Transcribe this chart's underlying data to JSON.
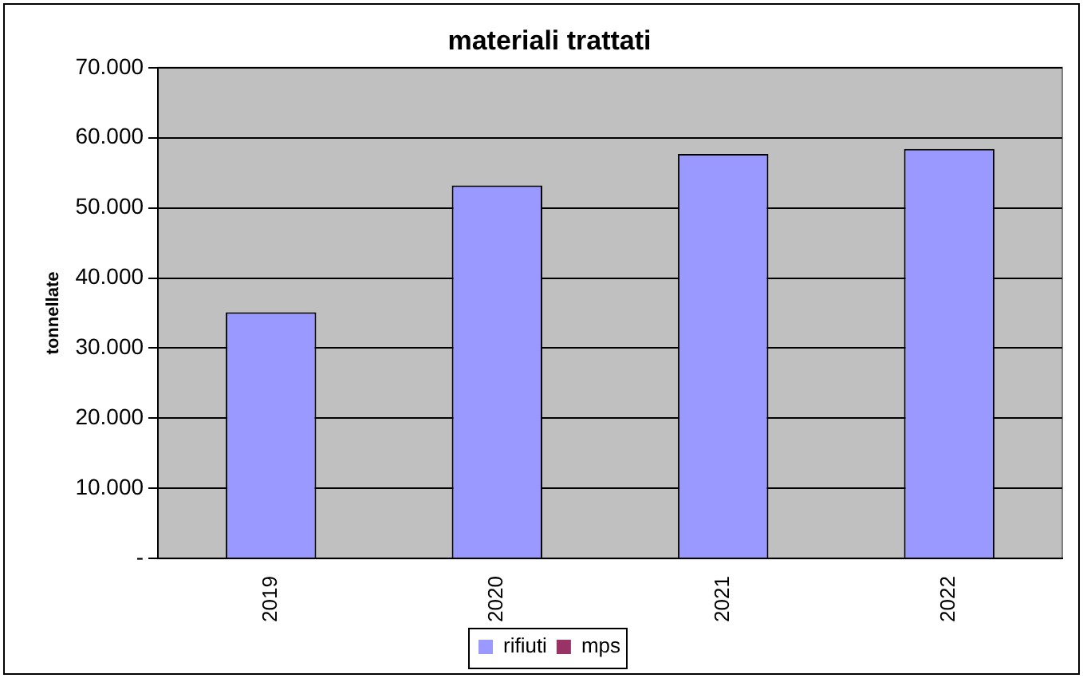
{
  "chart_data": {
    "type": "bar",
    "title": "materiali trattati",
    "ylabel": "tonnellate",
    "categories": [
      "2019",
      "2020",
      "2021",
      "2022"
    ],
    "stacked": true,
    "series": [
      {
        "name": "rifiuti",
        "color": "#9999ff",
        "values": [
          35100,
          53200,
          57700,
          58400
        ]
      },
      {
        "name": "mps",
        "color": "#993366",
        "values": [
          0,
          0,
          0,
          0
        ]
      }
    ],
    "ylim": [
      0,
      70000
    ],
    "yticks": [
      {
        "value": 0,
        "label": "-"
      },
      {
        "value": 10000,
        "label": "10.000"
      },
      {
        "value": 20000,
        "label": "20.000"
      },
      {
        "value": 30000,
        "label": "30.000"
      },
      {
        "value": 40000,
        "label": "40.000"
      },
      {
        "value": 50000,
        "label": "50.000"
      },
      {
        "value": 60000,
        "label": "60.000"
      },
      {
        "value": 70000,
        "label": "70.000"
      }
    ],
    "grid": "y",
    "legend": "bottom"
  }
}
